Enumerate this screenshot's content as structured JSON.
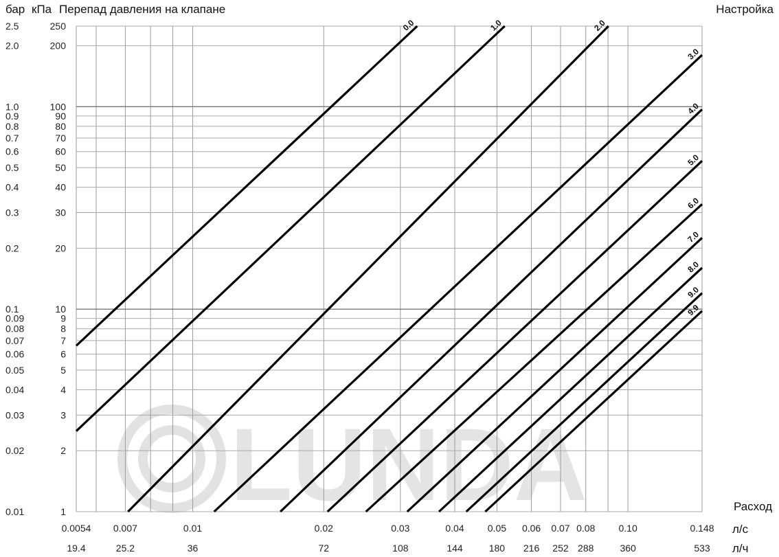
{
  "header": {
    "left_unit_bar": "бар",
    "left_unit_kpa": "кПа",
    "title": "Перепад давления на клапане",
    "right_title": "Настройка",
    "x_title": "Расход"
  },
  "units": {
    "flow_ls": "л/с",
    "flow_lh": "л/ч"
  },
  "watermark": "LUNDA",
  "chart_data": {
    "type": "line",
    "title": "Перепад давления на клапане",
    "xlabel": "Расход",
    "ylabel": "Перепад давления на клапане",
    "x_scale": "log",
    "y_scale": "log",
    "xlim": [
      0.0054,
      0.148
    ],
    "ylim": [
      1,
      250
    ],
    "grid": true,
    "y_ticks": [
      {
        "kpa": 250,
        "kpa_label": "250",
        "bar_label": "2.5"
      },
      {
        "kpa": 200,
        "kpa_label": "200",
        "bar_label": "2.0"
      },
      {
        "kpa": 100,
        "kpa_label": "100",
        "bar_label": "1.0"
      },
      {
        "kpa": 90,
        "kpa_label": "90",
        "bar_label": "0.9"
      },
      {
        "kpa": 80,
        "kpa_label": "80",
        "bar_label": "0.8"
      },
      {
        "kpa": 70,
        "kpa_label": "70",
        "bar_label": "0.7"
      },
      {
        "kpa": 60,
        "kpa_label": "60",
        "bar_label": "0.6"
      },
      {
        "kpa": 50,
        "kpa_label": "50",
        "bar_label": "0.5"
      },
      {
        "kpa": 40,
        "kpa_label": "40",
        "bar_label": "0.4"
      },
      {
        "kpa": 30,
        "kpa_label": "30",
        "bar_label": "0.3"
      },
      {
        "kpa": 20,
        "kpa_label": "20",
        "bar_label": "0.2"
      },
      {
        "kpa": 10,
        "kpa_label": "10",
        "bar_label": "0.1"
      },
      {
        "kpa": 9,
        "kpa_label": "9",
        "bar_label": "0.09"
      },
      {
        "kpa": 8,
        "kpa_label": "8",
        "bar_label": "0.08"
      },
      {
        "kpa": 7,
        "kpa_label": "7",
        "bar_label": "0.07"
      },
      {
        "kpa": 6,
        "kpa_label": "6",
        "bar_label": "0.06"
      },
      {
        "kpa": 5,
        "kpa_label": "5",
        "bar_label": "0.05"
      },
      {
        "kpa": 4,
        "kpa_label": "4",
        "bar_label": "0.04"
      },
      {
        "kpa": 3,
        "kpa_label": "3",
        "bar_label": "0.03"
      },
      {
        "kpa": 2,
        "kpa_label": "2",
        "bar_label": "0.02"
      },
      {
        "kpa": 1,
        "kpa_label": "1",
        "bar_label": "0.01"
      }
    ],
    "x_ticks": [
      {
        "ls": 0.0054,
        "ls_label": "0.0054",
        "lh_label": "19.4"
      },
      {
        "ls": 0.007,
        "ls_label": "0.007",
        "lh_label": "25.2"
      },
      {
        "ls": 0.01,
        "ls_label": "0.01",
        "lh_label": "36"
      },
      {
        "ls": 0.02,
        "ls_label": "0.02",
        "lh_label": "72"
      },
      {
        "ls": 0.03,
        "ls_label": "0.03",
        "lh_label": "108"
      },
      {
        "ls": 0.04,
        "ls_label": "0.04",
        "lh_label": "144"
      },
      {
        "ls": 0.05,
        "ls_label": "0.05",
        "lh_label": "180"
      },
      {
        "ls": 0.06,
        "ls_label": "0.06",
        "lh_label": "216"
      },
      {
        "ls": 0.07,
        "ls_label": "0.07",
        "lh_label": "252"
      },
      {
        "ls": 0.08,
        "ls_label": "0.08",
        "lh_label": "288"
      },
      {
        "ls": 0.1,
        "ls_label": "0.10",
        "lh_label": "360"
      },
      {
        "ls": 0.148,
        "ls_label": "0.148",
        "lh_label": "533"
      }
    ],
    "x_gridlines": [
      0.0054,
      0.006,
      0.007,
      0.008,
      0.009,
      0.01,
      0.02,
      0.03,
      0.04,
      0.05,
      0.06,
      0.07,
      0.08,
      0.09,
      0.1,
      0.148
    ],
    "y_gridlines": [
      1,
      2,
      3,
      4,
      5,
      6,
      7,
      8,
      9,
      10,
      20,
      30,
      40,
      50,
      60,
      70,
      80,
      90,
      100,
      200,
      250
    ],
    "series": [
      {
        "name": "0.0",
        "x": [
          0.0054,
          0.0328
        ],
        "y": [
          6.6,
          250
        ]
      },
      {
        "name": "1.0",
        "x": [
          0.0054,
          0.0521
        ],
        "y": [
          2.5,
          250
        ]
      },
      {
        "name": "2.0",
        "x": [
          0.0071,
          0.0902
        ],
        "y": [
          1,
          250
        ]
      },
      {
        "name": "3.0",
        "x": [
          0.0112,
          0.148
        ],
        "y": [
          1,
          180
        ]
      },
      {
        "name": "4.0",
        "x": [
          0.0159,
          0.148
        ],
        "y": [
          1,
          97
        ]
      },
      {
        "name": "5.0",
        "x": [
          0.0204,
          0.148
        ],
        "y": [
          1,
          54
        ]
      },
      {
        "name": "6.0",
        "x": [
          0.025,
          0.148
        ],
        "y": [
          1,
          33
        ]
      },
      {
        "name": "7.0",
        "x": [
          0.0311,
          0.148
        ],
        "y": [
          1,
          22.5
        ]
      },
      {
        "name": "8.0",
        "x": [
          0.0368,
          0.148
        ],
        "y": [
          1,
          16
        ]
      },
      {
        "name": "9.0",
        "x": [
          0.0425,
          0.148
        ],
        "y": [
          1,
          12
        ]
      },
      {
        "name": "9.9",
        "x": [
          0.047,
          0.148
        ],
        "y": [
          1,
          9.8
        ]
      }
    ]
  }
}
